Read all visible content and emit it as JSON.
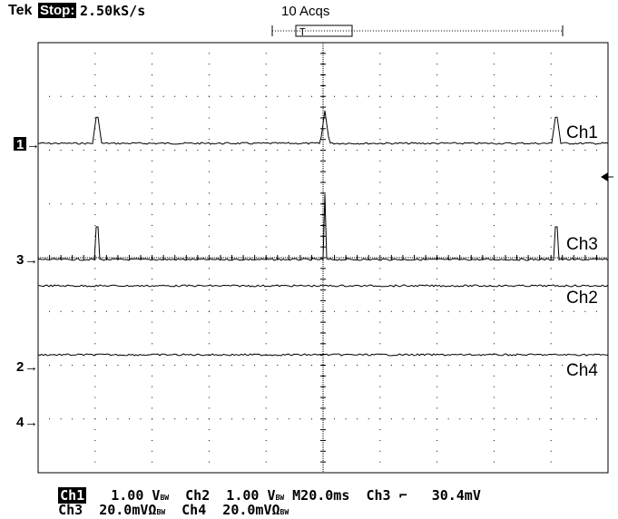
{
  "header": {
    "brand": "Tek",
    "run_state": "Stop:",
    "sample_rate": "2.50kS/s",
    "acquisitions": "10 Acqs"
  },
  "trace_labels": {
    "ch1": "Ch1",
    "ch3": "Ch3",
    "ch2": "Ch2",
    "ch4": "Ch4"
  },
  "ground_markers": {
    "ch1": "1",
    "ch3": "3",
    "ch2": "2",
    "ch4": "4"
  },
  "status": {
    "row1": {
      "ch1_label": "Ch1",
      "ch1_scale": "1.00 V",
      "ch2_label": "Ch2",
      "ch2_scale": "1.00 V",
      "timebase": "M20.0ms",
      "trigger_source": "Ch3",
      "trigger_slope_symbol": "⌐",
      "trigger_level": "30.4mV"
    },
    "row2": {
      "ch3_label": "Ch3",
      "ch3_scale": "20.0mVΩ",
      "ch4_label": "Ch4",
      "ch4_scale": "20.0mVΩ"
    },
    "bw_mark": "BW"
  }
}
